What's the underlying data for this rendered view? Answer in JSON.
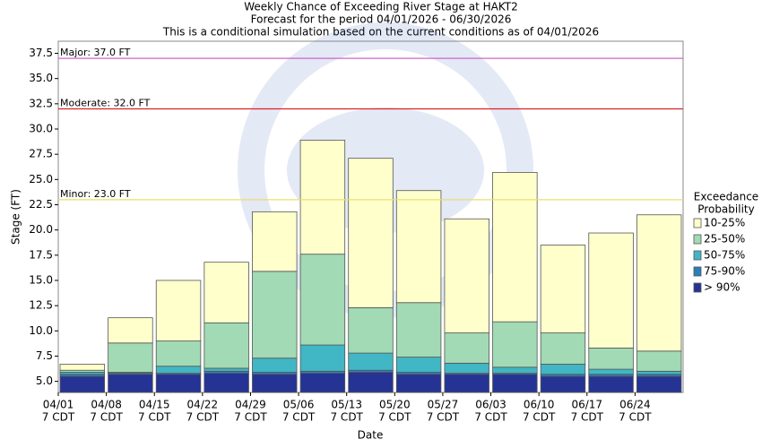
{
  "chart_data": {
    "type": "range-bar",
    "title": "Weekly Chance of Exceeding River Stage at HAKT2",
    "subtitle": "Forecast for the period 04/01/2026 - 06/30/2026",
    "note": "This is a conditional simulation based on the current conditions as of 04/01/2026",
    "x_label": "Date",
    "y_label": "Stage (FT)",
    "categories": [
      "04/01",
      "04/08",
      "04/15",
      "04/22",
      "04/29",
      "05/06",
      "05/13",
      "05/20",
      "05/27",
      "06/03",
      "06/10",
      "06/17",
      "06/24"
    ],
    "category_sublabels": [
      "7 CDT",
      "7 CDT",
      "7 CDT",
      "7 CDT",
      "7 CDT",
      "7 CDT",
      "7 CDT",
      "7 CDT",
      "7 CDT",
      "7 CDT",
      "7 CDT",
      "7 CDT",
      "7 CDT"
    ],
    "series": [
      {
        "name": "> 90%",
        "color": "#253494",
        "values": [
          5.5,
          5.7,
          5.7,
          5.8,
          5.7,
          5.8,
          5.9,
          5.7,
          5.7,
          5.7,
          5.5,
          5.5,
          5.5
        ]
      },
      {
        "name": "75-90%",
        "color": "#2c7fb8",
        "values": [
          5.7,
          5.8,
          5.8,
          6.0,
          5.9,
          6.0,
          6.1,
          5.9,
          5.8,
          5.8,
          5.7,
          5.7,
          5.7
        ]
      },
      {
        "name": "50-75%",
        "color": "#41b6c4",
        "values": [
          5.9,
          5.9,
          6.5,
          6.3,
          7.3,
          8.6,
          7.8,
          7.4,
          6.8,
          6.4,
          6.7,
          6.2,
          6.0
        ]
      },
      {
        "name": "25-50%",
        "color": "#a1dab4",
        "values": [
          6.1,
          8.8,
          9.0,
          10.8,
          15.9,
          17.6,
          12.3,
          12.8,
          9.8,
          10.9,
          9.8,
          8.3,
          8.0
        ]
      },
      {
        "name": "10-25%",
        "color": "#ffffcc",
        "values": [
          6.7,
          11.3,
          15.0,
          16.8,
          21.8,
          28.9,
          27.1,
          23.9,
          21.1,
          25.7,
          18.5,
          19.7,
          21.5
        ]
      }
    ],
    "thresholds": [
      {
        "label": "Major: 37.0 FT",
        "value": 37.0,
        "color": "#cc66cc"
      },
      {
        "label": "Moderate: 32.0 FT",
        "value": 32.0,
        "color": "#dd2222"
      },
      {
        "label": "Minor: 23.0 FT",
        "value": 23.0,
        "color": "#e8e070"
      }
    ],
    "legend_title": [
      "Exceedance",
      "Probability"
    ],
    "legend_position": "right",
    "ylim": [
      3.9,
      38.7
    ],
    "yticks": [
      {
        "value": 5.0,
        "label": "5.0"
      },
      7.5,
      {
        "value": 10.0,
        "label": "10.0"
      },
      12.5,
      {
        "value": 15.0,
        "label": "15.0"
      },
      17.5,
      {
        "value": 20.0,
        "label": "20.0"
      },
      22.5,
      {
        "value": 25.0,
        "label": "25.0"
      },
      27.5,
      {
        "value": 30.0,
        "label": "30.0"
      },
      32.5,
      {
        "value": 35.0,
        "label": "35.0"
      },
      37.5
    ]
  }
}
